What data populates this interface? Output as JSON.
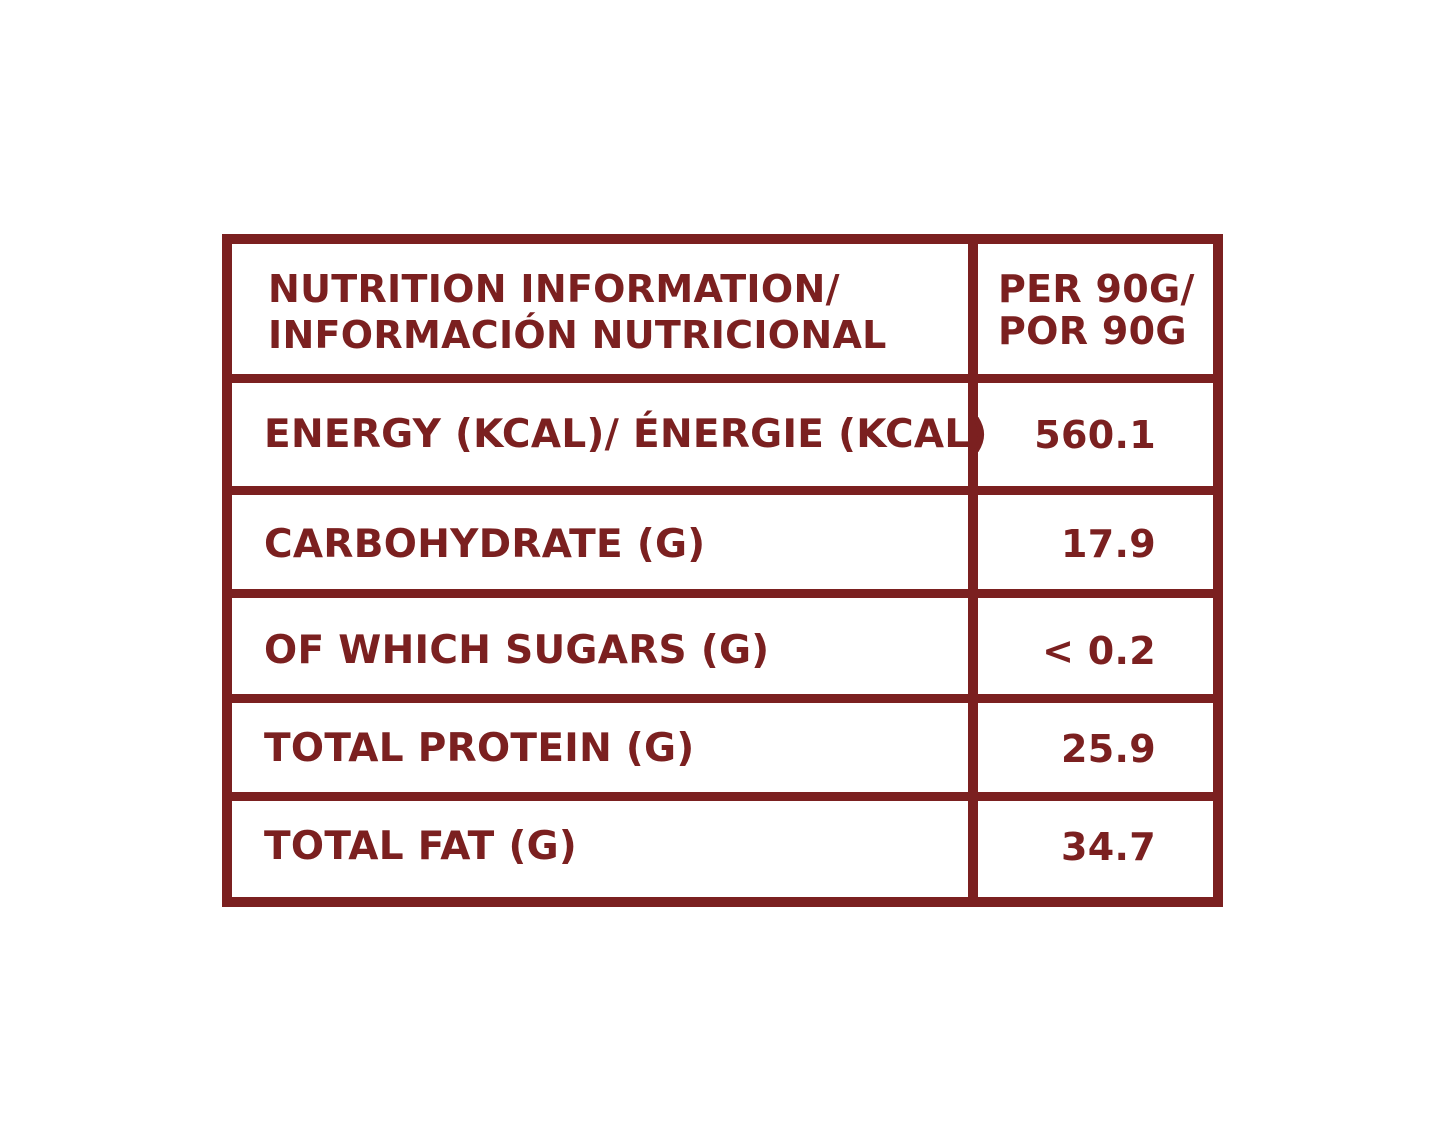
{
  "header": {
    "label_line1": "NUTRITION INFORMATION/",
    "label_line2": "INFORMACIÓN NUTRICIONAL",
    "value_line1": "PER 90G/",
    "value_line2": "POR 90G"
  },
  "rows": [
    {
      "label": "ENERGY (KCAL)/ ÉNERGIE (KCAL)",
      "value": "560.1"
    },
    {
      "label": "CARBOHYDRATE (G)",
      "value": "17.9"
    },
    {
      "label": "OF WHICH SUGARS (G)",
      "value": "< 0.2"
    },
    {
      "label": "TOTAL PROTEIN (G)",
      "value": "25.9"
    },
    {
      "label": "TOTAL FAT (G)",
      "value": "34.7"
    }
  ],
  "colors": {
    "border": "#7b2020",
    "text": "#7b2020",
    "background": "#ffffff"
  }
}
